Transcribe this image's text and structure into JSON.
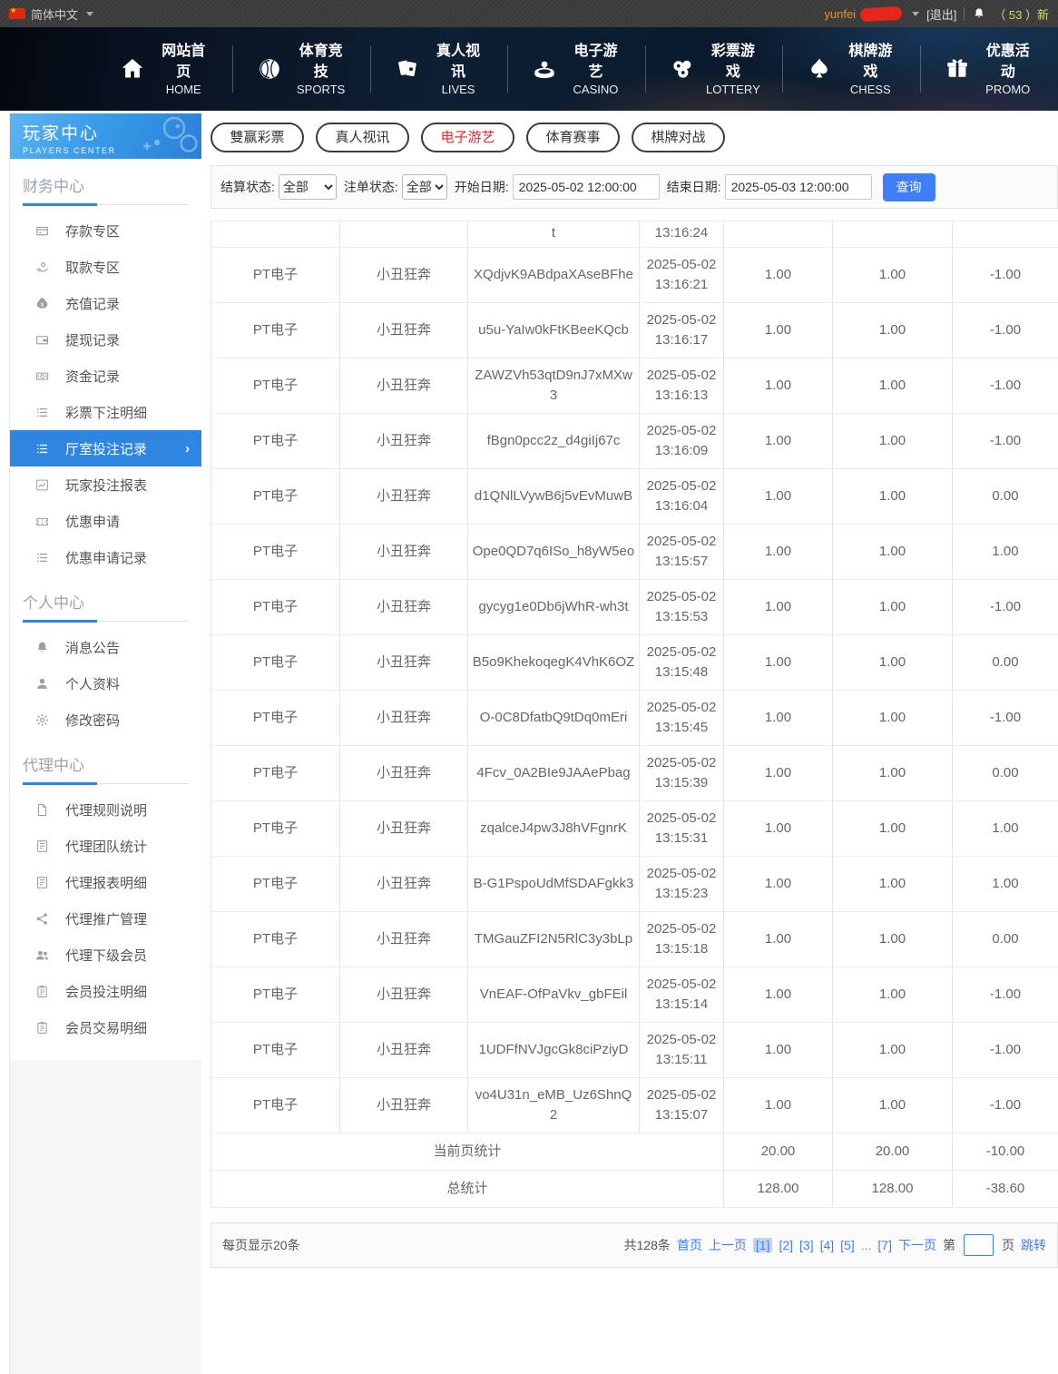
{
  "colors": {
    "accent_blue": "#2e86e0",
    "button_blue": "#3e7ef7",
    "tab_active_red": "#e02a2a",
    "count_green": "#cddc6e",
    "username_orange": "#e8932c"
  },
  "topbar": {
    "language": "简体中文",
    "username": "yunfei",
    "logout_label": "[退出]",
    "notice_count": "（ 53 ）新"
  },
  "nav": {
    "items": [
      {
        "zh": "网站首页",
        "en": "HOME",
        "icon": "home-icon"
      },
      {
        "zh": "体育竞技",
        "en": "SPORTS",
        "icon": "sports-ball-icon"
      },
      {
        "zh": "真人视讯",
        "en": "LIVES",
        "icon": "cards-icon"
      },
      {
        "zh": "电子游艺",
        "en": "CASINO",
        "icon": "roulette-icon"
      },
      {
        "zh": "彩票游戏",
        "en": "LOTTERY",
        "icon": "lottery-balls-icon"
      },
      {
        "zh": "棋牌游戏",
        "en": "CHESS",
        "icon": "spade-icon"
      },
      {
        "zh": "优惠活动",
        "en": "PROMO",
        "icon": "gift-icon"
      }
    ]
  },
  "sidebar": {
    "title": "玩家中心",
    "subtitle": "PLAYERS CENTER",
    "sections": [
      {
        "title": "财务中心",
        "items": [
          {
            "label": "存款专区",
            "icon": "bank-card-icon"
          },
          {
            "label": "取款专区",
            "icon": "hand-coin-icon"
          },
          {
            "label": "充值记录",
            "icon": "moneybag-icon"
          },
          {
            "label": "提现记录",
            "icon": "wallet-icon"
          },
          {
            "label": "资金记录",
            "icon": "money-icon"
          },
          {
            "label": "彩票下注明细",
            "icon": "list-icon"
          },
          {
            "label": "厅室投注记录",
            "icon": "list-icon",
            "active": true,
            "chevron": "›"
          },
          {
            "label": "玩家投注报表",
            "icon": "chart-icon"
          },
          {
            "label": "优惠申请",
            "icon": "ticket-icon"
          },
          {
            "label": "优惠申请记录",
            "icon": "list-icon"
          }
        ]
      },
      {
        "title": "个人中心",
        "items": [
          {
            "label": "消息公告",
            "icon": "bell-icon"
          },
          {
            "label": "个人资料",
            "icon": "person-icon"
          },
          {
            "label": "修改密码",
            "icon": "gear-icon"
          }
        ]
      },
      {
        "title": "代理中心",
        "items": [
          {
            "label": "代理规则说明",
            "icon": "doc-icon"
          },
          {
            "label": "代理团队统计",
            "icon": "report-icon"
          },
          {
            "label": "代理报表明细",
            "icon": "report-icon"
          },
          {
            "label": "代理推广管理",
            "icon": "share-icon"
          },
          {
            "label": "代理下级会员",
            "icon": "people-icon"
          },
          {
            "label": "会员投注明细",
            "icon": "clipboard-icon"
          },
          {
            "label": "会员交易明细",
            "icon": "clipboard-icon"
          }
        ]
      }
    ]
  },
  "tabs": [
    {
      "label": "雙赢彩票"
    },
    {
      "label": "真人视讯"
    },
    {
      "label": "电子游艺",
      "active": true
    },
    {
      "label": "体育赛事"
    },
    {
      "label": "棋牌对战"
    }
  ],
  "filters": {
    "settle_label": "结算状态:",
    "settle_value": "全部",
    "order_label": "注单状态:",
    "order_value": "全部",
    "start_label": "开始日期:",
    "start_value": "2025-05-02 12:00:00",
    "end_label": "结束日期:",
    "end_value": "2025-05-03 12:00:00",
    "search_label": "查询"
  },
  "table": {
    "partial_row": {
      "order": "t",
      "time": "13:16:24"
    },
    "rows": [
      {
        "provider": "PT电子",
        "game": "小丑狂奔",
        "order": "XQdjvK9ABdpaXAseBFhe",
        "date": "2025-05-02",
        "time": "13:16:21",
        "bet": "1.00",
        "valid": "1.00",
        "result": "-1.00"
      },
      {
        "provider": "PT电子",
        "game": "小丑狂奔",
        "order": "u5u-YaIw0kFtKBeeKQcb",
        "date": "2025-05-02",
        "time": "13:16:17",
        "bet": "1.00",
        "valid": "1.00",
        "result": "-1.00"
      },
      {
        "provider": "PT电子",
        "game": "小丑狂奔",
        "order": "ZAWZVh53qtD9nJ7xMXw3",
        "date": "2025-05-02",
        "time": "13:16:13",
        "bet": "1.00",
        "valid": "1.00",
        "result": "-1.00"
      },
      {
        "provider": "PT电子",
        "game": "小丑狂奔",
        "order": "fBgn0pcc2z_d4giIj67c",
        "date": "2025-05-02",
        "time": "13:16:09",
        "bet": "1.00",
        "valid": "1.00",
        "result": "-1.00"
      },
      {
        "provider": "PT电子",
        "game": "小丑狂奔",
        "order": "d1QNlLVywB6j5vEvMuwB",
        "date": "2025-05-02",
        "time": "13:16:04",
        "bet": "1.00",
        "valid": "1.00",
        "result": "0.00"
      },
      {
        "provider": "PT电子",
        "game": "小丑狂奔",
        "order": "Ope0QD7q6ISo_h8yW5eo",
        "date": "2025-05-02",
        "time": "13:15:57",
        "bet": "1.00",
        "valid": "1.00",
        "result": "1.00"
      },
      {
        "provider": "PT电子",
        "game": "小丑狂奔",
        "order": "gycyg1e0Db6jWhR-wh3t",
        "date": "2025-05-02",
        "time": "13:15:53",
        "bet": "1.00",
        "valid": "1.00",
        "result": "-1.00"
      },
      {
        "provider": "PT电子",
        "game": "小丑狂奔",
        "order": "B5o9KhekoqegK4VhK6OZ",
        "date": "2025-05-02",
        "time": "13:15:48",
        "bet": "1.00",
        "valid": "1.00",
        "result": "0.00"
      },
      {
        "provider": "PT电子",
        "game": "小丑狂奔",
        "order": "O-0C8DfatbQ9tDq0mEri",
        "date": "2025-05-02",
        "time": "13:15:45",
        "bet": "1.00",
        "valid": "1.00",
        "result": "-1.00"
      },
      {
        "provider": "PT电子",
        "game": "小丑狂奔",
        "order": "4Fcv_0A2BIe9JAAePbag",
        "date": "2025-05-02",
        "time": "13:15:39",
        "bet": "1.00",
        "valid": "1.00",
        "result": "0.00"
      },
      {
        "provider": "PT电子",
        "game": "小丑狂奔",
        "order": "zqalceJ4pw3J8hVFgnrK",
        "date": "2025-05-02",
        "time": "13:15:31",
        "bet": "1.00",
        "valid": "1.00",
        "result": "1.00"
      },
      {
        "provider": "PT电子",
        "game": "小丑狂奔",
        "order": "B-G1PspoUdMfSDAFgkk3",
        "date": "2025-05-02",
        "time": "13:15:23",
        "bet": "1.00",
        "valid": "1.00",
        "result": "1.00"
      },
      {
        "provider": "PT电子",
        "game": "小丑狂奔",
        "order": "TMGauZFI2N5RlC3y3bLp",
        "date": "2025-05-02",
        "time": "13:15:18",
        "bet": "1.00",
        "valid": "1.00",
        "result": "0.00"
      },
      {
        "provider": "PT电子",
        "game": "小丑狂奔",
        "order": "VnEAF-OfPaVkv_gbFEil",
        "date": "2025-05-02",
        "time": "13:15:14",
        "bet": "1.00",
        "valid": "1.00",
        "result": "-1.00"
      },
      {
        "provider": "PT电子",
        "game": "小丑狂奔",
        "order": "1UDFfNVJgcGk8ciPziyD",
        "date": "2025-05-02",
        "time": "13:15:11",
        "bet": "1.00",
        "valid": "1.00",
        "result": "-1.00"
      },
      {
        "provider": "PT电子",
        "game": "小丑狂奔",
        "order": "vo4U31n_eMB_Uz6ShnQ2",
        "date": "2025-05-02",
        "time": "13:15:07",
        "bet": "1.00",
        "valid": "1.00",
        "result": "-1.00"
      }
    ],
    "summary": [
      {
        "label": "当前页统计",
        "bet": "20.00",
        "valid": "20.00",
        "result": "-10.00"
      },
      {
        "label": "总统计",
        "bet": "128.00",
        "valid": "128.00",
        "result": "-38.60"
      }
    ]
  },
  "pagination": {
    "per_page": "每页显示20条",
    "total": "共128条",
    "links": [
      {
        "label": "首页",
        "type": "link"
      },
      {
        "label": "上一页",
        "type": "link"
      },
      {
        "label": "[1]",
        "type": "current"
      },
      {
        "label": "[2]",
        "type": "link"
      },
      {
        "label": "[3]",
        "type": "link"
      },
      {
        "label": "[4]",
        "type": "link"
      },
      {
        "label": "[5]",
        "type": "link"
      },
      {
        "label": "...",
        "type": "text"
      },
      {
        "label": "[7]",
        "type": "link"
      },
      {
        "label": "下一页",
        "type": "link"
      }
    ],
    "jump_prefix": "第",
    "jump_suffix": "页",
    "jump_label": "跳转"
  }
}
